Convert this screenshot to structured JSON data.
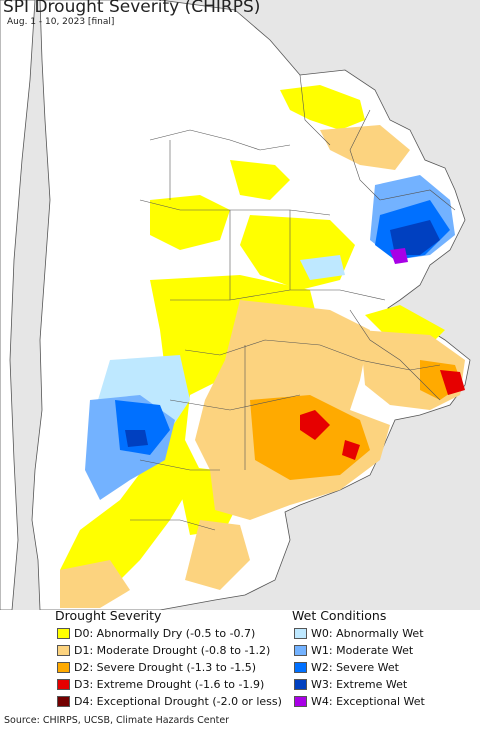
{
  "title": "SPI Drought Severity (CHIRPS)",
  "subtitle": "Aug. 1 - 10, 2023 [final]",
  "colors": {
    "ocean": "#e6e6e6",
    "land": "#ffffff",
    "border": "#555555"
  },
  "legend": {
    "drought_title": "Drought Severity",
    "wet_title": "Wet Conditions",
    "drought_items": [
      {
        "label": "D0: Abnormally Dry (-0.5 to -0.7)",
        "color": "#ffff00"
      },
      {
        "label": "D1: Moderate Drought (-0.8 to -1.2)",
        "color": "#fcd37f"
      },
      {
        "label": "D2: Severe Drought (-1.3 to -1.5)",
        "color": "#ffaa00"
      },
      {
        "label": "D3: Extreme Drought (-1.6 to -1.9)",
        "color": "#e60000"
      },
      {
        "label": "D4: Exceptional Drought (-2.0 or less)",
        "color": "#730000"
      }
    ],
    "wet_items": [
      {
        "label": "W0: Abnormally Wet",
        "color": "#bee8ff"
      },
      {
        "label": "W1: Moderate Wet",
        "color": "#73b2ff"
      },
      {
        "label": "W2: Severe Wet",
        "color": "#0070ff"
      },
      {
        "label": "W3: Extreme Wet",
        "color": "#0040c0"
      },
      {
        "label": "W4: Exceptional Wet",
        "color": "#a800e6"
      }
    ]
  },
  "source": "Source: CHIRPS, UCSB, Climate Hazards Center"
}
